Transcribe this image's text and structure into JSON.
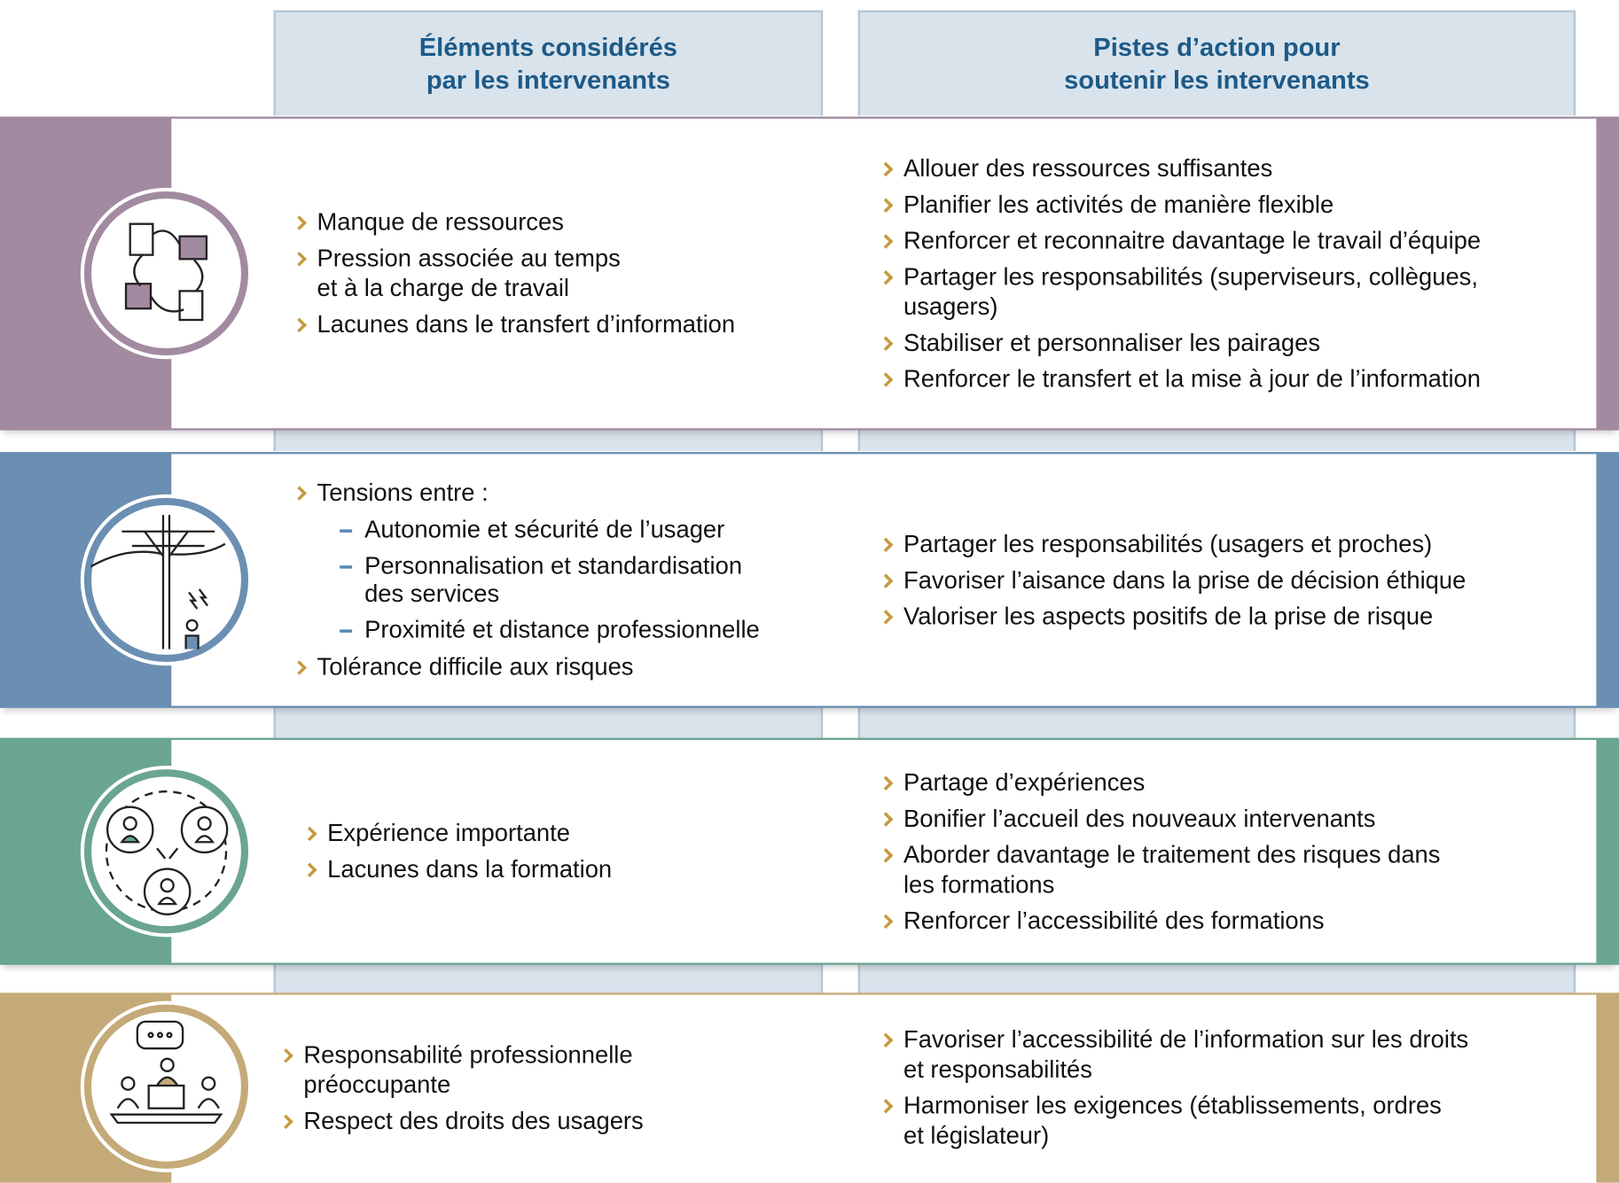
{
  "header": {
    "left": "Éléments considérés\npar les intervenants",
    "right": "Pistes d’action pour\nsoutenir les intervenants"
  },
  "rows": [
    {
      "left": [
        {
          "text": "Manque de ressources"
        },
        {
          "text": "Pression associée au temps\net à la charge de travail"
        },
        {
          "text": "Lacunes dans le transfert d’information"
        }
      ],
      "right": [
        {
          "text": "Allouer des ressources suffisantes"
        },
        {
          "text": "Planifier les activités de manière flexible"
        },
        {
          "text": "Renforcer et reconnaitre davantage le travail d’équipe"
        },
        {
          "text": "Partager les responsabilités (superviseurs, collègues,\nusagers)"
        },
        {
          "text": "Stabiliser et personnaliser les pairages"
        },
        {
          "text": "Renforcer le transfert et la mise à jour de l’information"
        }
      ]
    },
    {
      "left": [
        {
          "text": "Tensions entre :",
          "sub": [
            "Autonomie et sécurité de l’usager",
            "Personnalisation et standardisation\ndes services",
            "Proximité et distance professionnelle"
          ]
        },
        {
          "text": "Tolérance difficile aux risques"
        }
      ],
      "right": [
        {
          "text": "Partager les responsabilités (usagers et proches)"
        },
        {
          "text": "Favoriser l’aisance dans la prise de décision éthique"
        },
        {
          "text": "Valoriser les aspects positifs de la prise de risque"
        }
      ]
    },
    {
      "left": [
        {
          "text": "Expérience importante"
        },
        {
          "text": "Lacunes dans la formation"
        }
      ],
      "right": [
        {
          "text": "Partage d’expériences"
        },
        {
          "text": "Bonifier l’accueil des nouveaux intervenants"
        },
        {
          "text": "Aborder davantage le traitement des risques dans\nles formations"
        },
        {
          "text": "Renforcer l’accessibilité des formations"
        }
      ]
    },
    {
      "left": [
        {
          "text": "Responsabilité professionnelle\npréoccupante"
        },
        {
          "text": "Respect des droits des usagers"
        }
      ],
      "right": [
        {
          "text": "Favoriser l’accessibilité de l’information sur les droits\net responsabilités"
        },
        {
          "text": "Harmoniser les exigences (établissements, ordres\net législateur)"
        }
      ]
    }
  ]
}
